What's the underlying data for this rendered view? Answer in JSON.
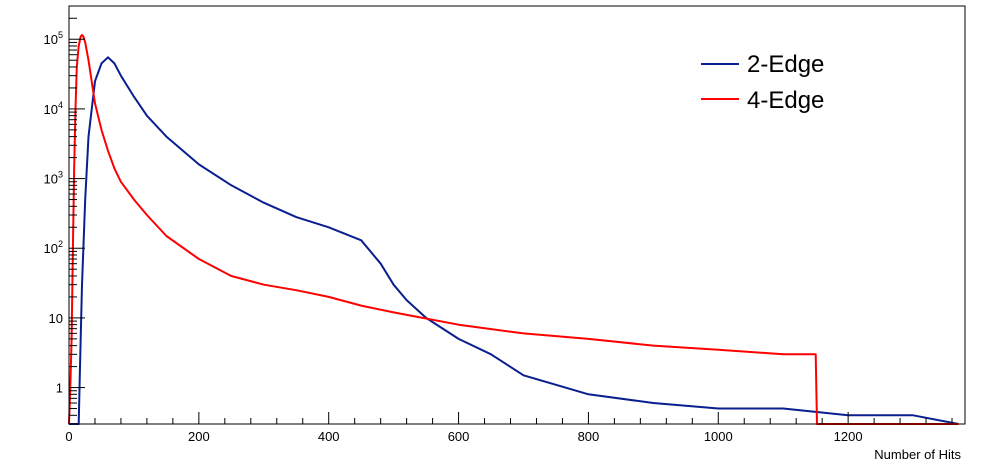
{
  "chart_data": {
    "type": "line",
    "title": "",
    "xlabel": "Number of Hits",
    "ylabel": "",
    "xlim": [
      0,
      1380
    ],
    "ylim": [
      0.3,
      300000
    ],
    "yscale": "log",
    "grid": false,
    "legend_position": "top-right",
    "x_ticks": [
      0,
      200,
      400,
      600,
      800,
      1000,
      1200
    ],
    "x_tick_labels": [
      "0",
      "200",
      "400",
      "600",
      "800",
      "1000",
      "1200"
    ],
    "y_ticks": [
      1,
      10,
      100,
      1000,
      10000,
      100000
    ],
    "y_tick_labels": [
      {
        "base": "1",
        "exp": ""
      },
      {
        "base": "10",
        "exp": ""
      },
      {
        "base": "10",
        "exp": "2"
      },
      {
        "base": "10",
        "exp": "3"
      },
      {
        "base": "10",
        "exp": "4"
      },
      {
        "base": "10",
        "exp": "5"
      }
    ],
    "series": [
      {
        "name": "2-Edge",
        "color": "#0a1f8f",
        "x": [
          0,
          15,
          17,
          20,
          25,
          30,
          40,
          50,
          60,
          70,
          80,
          100,
          120,
          150,
          200,
          250,
          300,
          350,
          400,
          450,
          480,
          500,
          520,
          550,
          600,
          650,
          700,
          800,
          900,
          1000,
          1100,
          1200,
          1300,
          1370
        ],
        "y": [
          0.3,
          0.3,
          2,
          30,
          500,
          4000,
          25000,
          45000,
          55000,
          45000,
          30000,
          15000,
          8000,
          4000,
          1600,
          800,
          450,
          280,
          200,
          130,
          60,
          30,
          18,
          10,
          5,
          3,
          1.5,
          0.8,
          0.6,
          0.5,
          0.5,
          0.4,
          0.4,
          0.3
        ]
      },
      {
        "name": "4-Edge",
        "color": "#ff0000",
        "x": [
          0,
          2,
          4,
          6,
          8,
          10,
          12,
          15,
          18,
          20,
          22,
          25,
          30,
          40,
          50,
          60,
          70,
          80,
          100,
          120,
          150,
          200,
          250,
          300,
          350,
          400,
          450,
          500,
          600,
          700,
          800,
          900,
          1000,
          1100,
          1150,
          1152,
          1370
        ],
        "y": [
          0.3,
          1,
          5,
          100,
          1500,
          10000,
          40000,
          80000,
          110000,
          115000,
          110000,
          90000,
          50000,
          12000,
          5000,
          2500,
          1400,
          900,
          500,
          300,
          150,
          70,
          40,
          30,
          25,
          20,
          15,
          12,
          8,
          6,
          5,
          4,
          3.5,
          3,
          3,
          0.3,
          0.3
        ]
      }
    ]
  }
}
